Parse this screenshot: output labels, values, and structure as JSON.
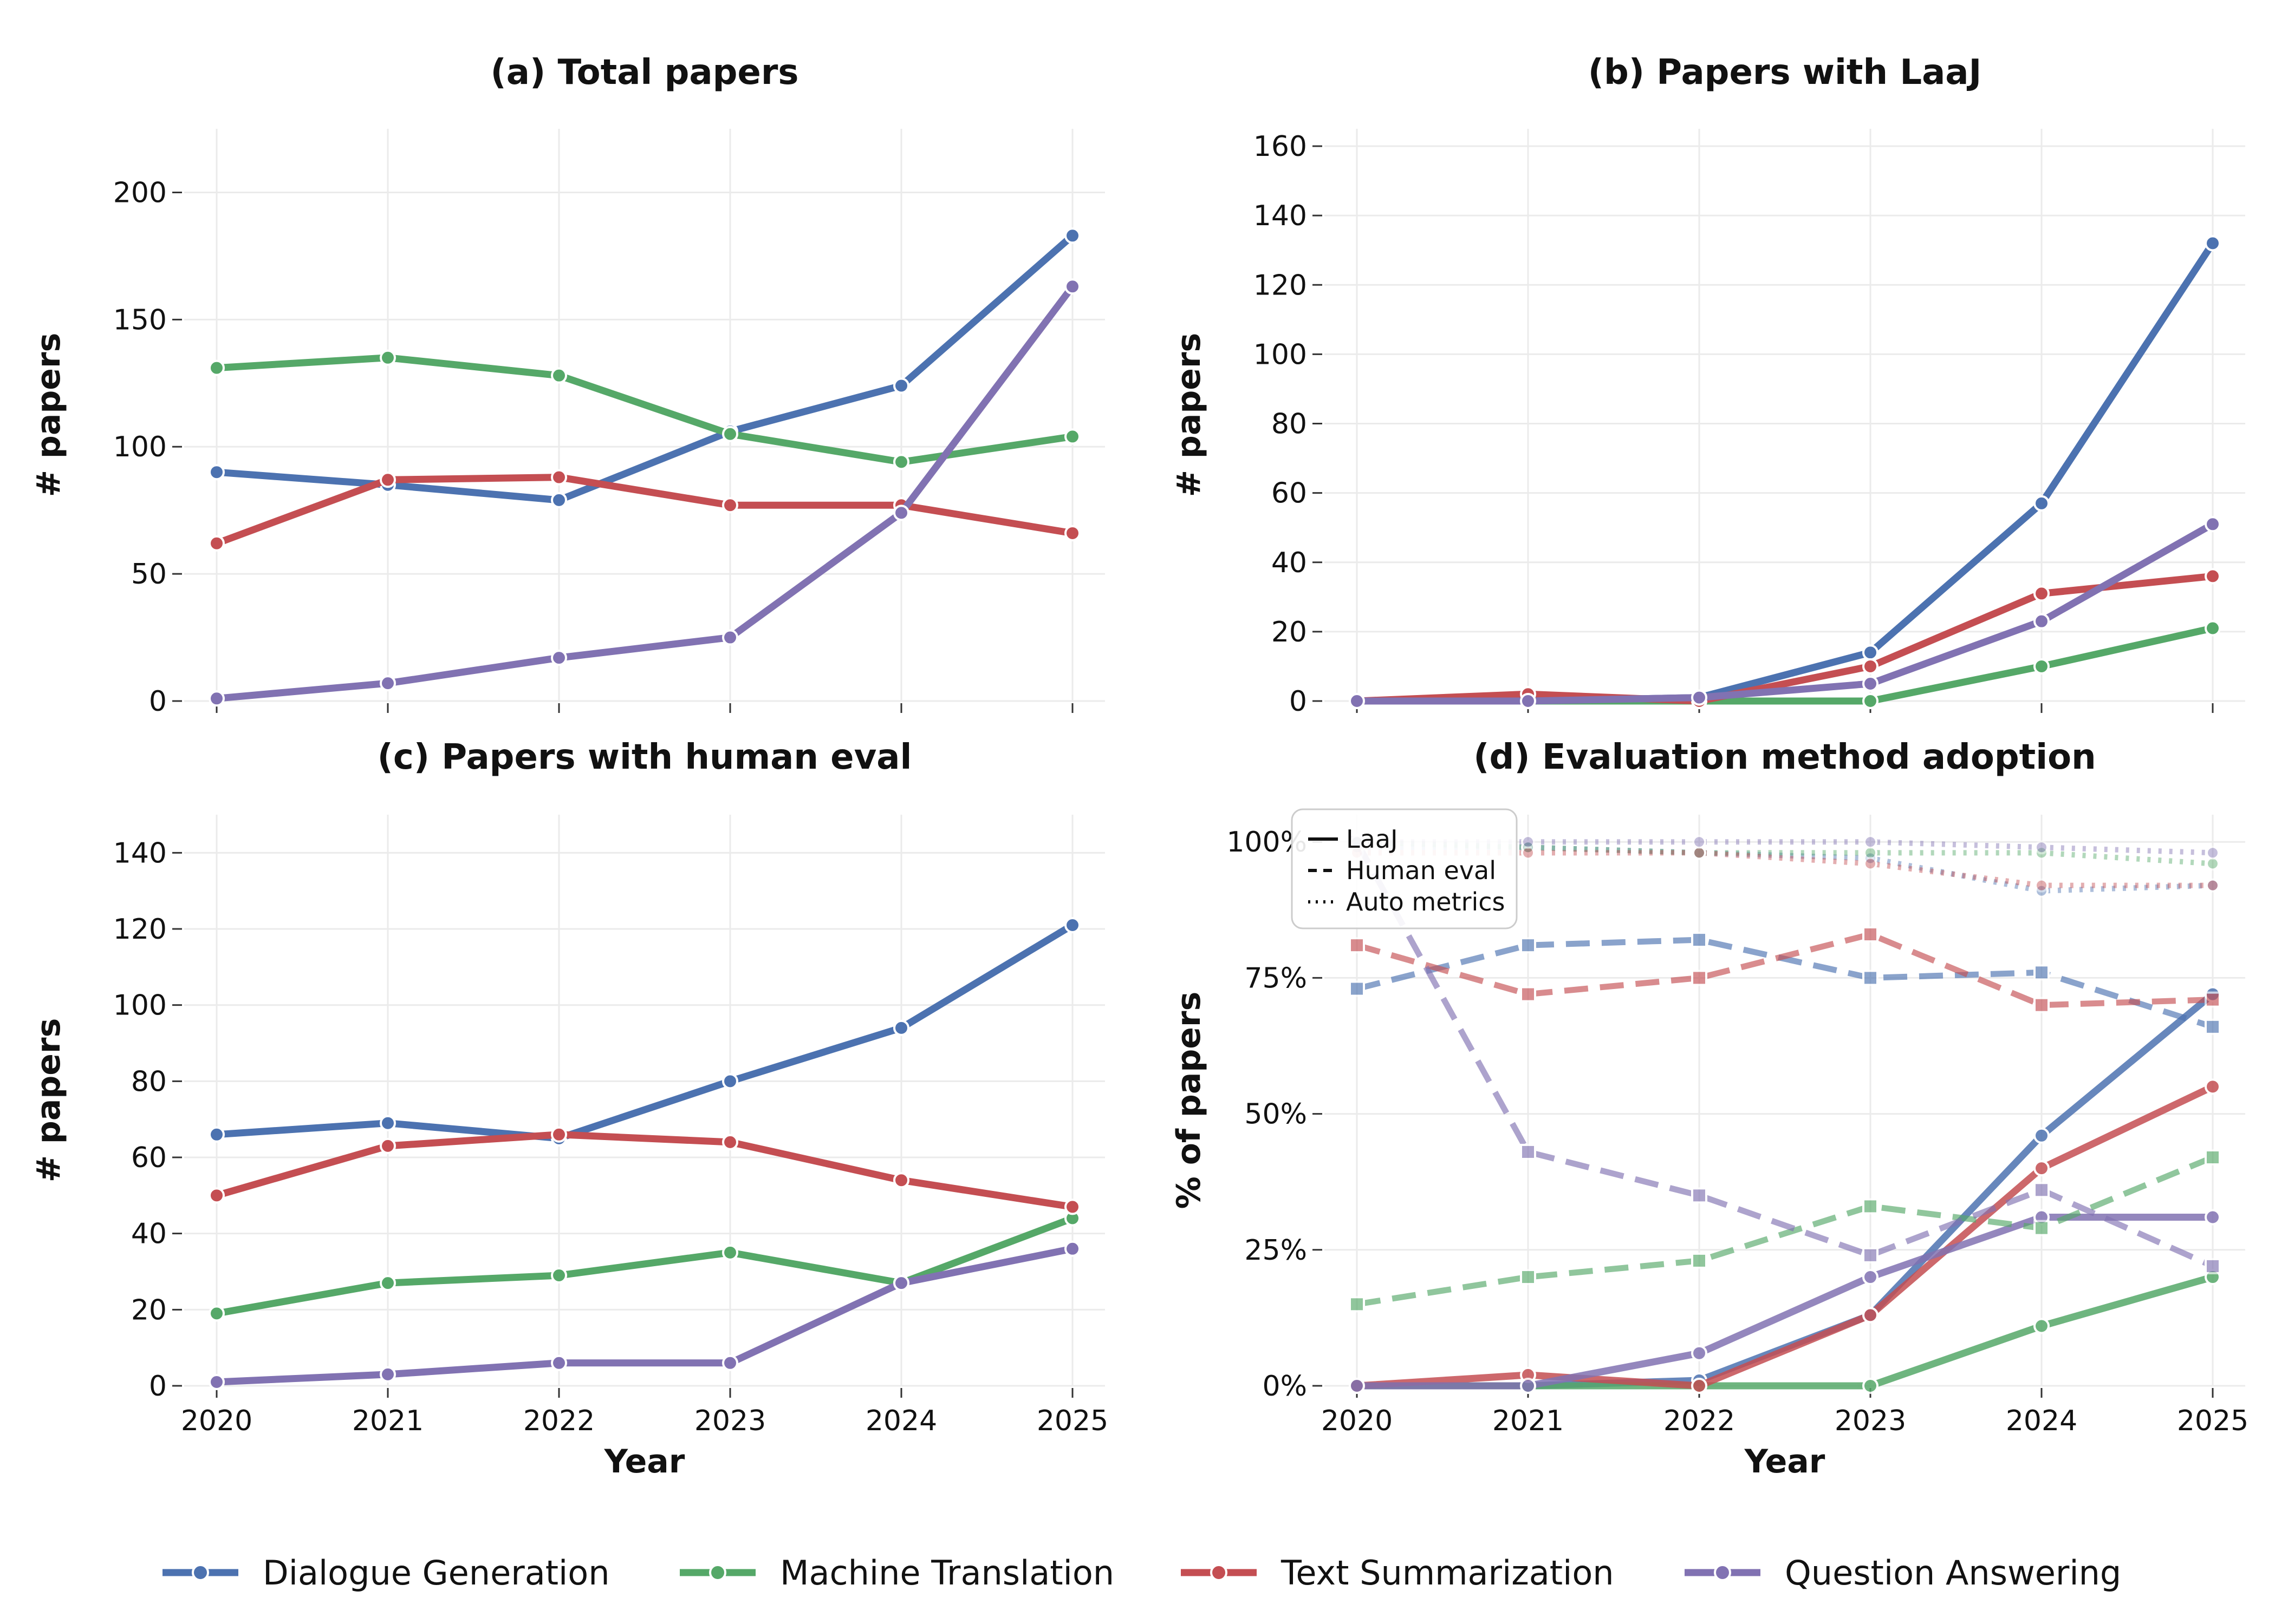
{
  "colors": {
    "dialogue": "#4c72b0",
    "translation": "#55a868",
    "summarization": "#c44e52",
    "qa": "#8172b2"
  },
  "legend": [
    {
      "key": "dialogue",
      "label": "Dialogue Generation"
    },
    {
      "key": "translation",
      "label": "Machine Translation"
    },
    {
      "key": "summarization",
      "label": "Text Summarization"
    },
    {
      "key": "qa",
      "label": "Question Answering"
    }
  ],
  "chart_data": [
    {
      "type": "line",
      "title": "(a) Total papers",
      "xlabel": "",
      "ylabel": "# papers",
      "x": [
        2020,
        2021,
        2022,
        2023,
        2024,
        2025
      ],
      "ylim": [
        0,
        225
      ],
      "yticks": [
        0,
        50,
        100,
        150,
        200
      ],
      "show_x_ticklabels": false,
      "series": [
        {
          "key": "dialogue",
          "name": "Dialogue Generation",
          "values": [
            90,
            85,
            79,
            106,
            124,
            183
          ]
        },
        {
          "key": "translation",
          "name": "Machine Translation",
          "values": [
            131,
            135,
            128,
            105,
            94,
            104
          ]
        },
        {
          "key": "summarization",
          "name": "Text Summarization",
          "values": [
            62,
            87,
            88,
            77,
            77,
            66
          ]
        },
        {
          "key": "qa",
          "name": "Question Answering",
          "values": [
            1,
            7,
            17,
            25,
            74,
            163
          ]
        }
      ]
    },
    {
      "type": "line",
      "title": "(b) Papers with LaaJ",
      "xlabel": "",
      "ylabel": "# papers",
      "x": [
        2020,
        2021,
        2022,
        2023,
        2024,
        2025
      ],
      "ylim": [
        0,
        165
      ],
      "yticks": [
        0,
        20,
        40,
        60,
        80,
        100,
        120,
        140,
        160
      ],
      "show_x_ticklabels": false,
      "series": [
        {
          "key": "dialogue",
          "name": "Dialogue Generation",
          "values": [
            0,
            0,
            1,
            14,
            57,
            132
          ]
        },
        {
          "key": "translation",
          "name": "Machine Translation",
          "values": [
            0,
            0,
            0,
            0,
            10,
            21
          ]
        },
        {
          "key": "summarization",
          "name": "Text Summarization",
          "values": [
            0,
            2,
            0,
            10,
            31,
            36
          ]
        },
        {
          "key": "qa",
          "name": "Question Answering",
          "values": [
            0,
            0,
            1,
            5,
            23,
            51
          ]
        }
      ]
    },
    {
      "type": "line",
      "title": "(c) Papers with human eval",
      "xlabel": "Year",
      "ylabel": "# papers",
      "x": [
        2020,
        2021,
        2022,
        2023,
        2024,
        2025
      ],
      "ylim": [
        0,
        150
      ],
      "yticks": [
        0,
        20,
        40,
        60,
        80,
        100,
        120,
        140
      ],
      "show_x_ticklabels": true,
      "series": [
        {
          "key": "dialogue",
          "name": "Dialogue Generation",
          "values": [
            66,
            69,
            65,
            80,
            94,
            121
          ]
        },
        {
          "key": "translation",
          "name": "Machine Translation",
          "values": [
            19,
            27,
            29,
            35,
            27,
            44
          ]
        },
        {
          "key": "summarization",
          "name": "Text Summarization",
          "values": [
            50,
            63,
            66,
            64,
            54,
            47
          ]
        },
        {
          "key": "qa",
          "name": "Question Answering",
          "values": [
            1,
            3,
            6,
            6,
            27,
            36
          ]
        }
      ]
    },
    {
      "type": "line",
      "title": "(d) Evaluation method adoption",
      "xlabel": "Year",
      "ylabel": "% of papers",
      "x": [
        2020,
        2021,
        2022,
        2023,
        2024,
        2025
      ],
      "ylim": [
        0,
        1.05
      ],
      "yticks": [
        0,
        0.25,
        0.5,
        0.75,
        1.0
      ],
      "ytick_labels": [
        "0%",
        "25%",
        "50%",
        "75%",
        "100%"
      ],
      "show_x_ticklabels": true,
      "style_legend": [
        {
          "style": "solid",
          "label": "LaaJ"
        },
        {
          "style": "dashed",
          "label": "Human eval"
        },
        {
          "style": "dotted",
          "label": "Auto metrics"
        }
      ],
      "series": [
        {
          "key": "dialogue",
          "metric": "LaaJ",
          "values": [
            0,
            0,
            0.01,
            0.13,
            0.46,
            0.72
          ]
        },
        {
          "key": "translation",
          "metric": "LaaJ",
          "values": [
            0,
            0,
            0,
            0,
            0.11,
            0.2
          ]
        },
        {
          "key": "summarization",
          "metric": "LaaJ",
          "values": [
            0,
            0.02,
            0,
            0.13,
            0.4,
            0.55
          ]
        },
        {
          "key": "qa",
          "metric": "LaaJ",
          "values": [
            0,
            0,
            0.06,
            0.2,
            0.31,
            0.31
          ]
        },
        {
          "key": "dialogue",
          "metric": "Human eval",
          "values": [
            0.73,
            0.81,
            0.82,
            0.75,
            0.76,
            0.66
          ]
        },
        {
          "key": "translation",
          "metric": "Human eval",
          "values": [
            0.15,
            0.2,
            0.23,
            0.33,
            0.29,
            0.42
          ]
        },
        {
          "key": "summarization",
          "metric": "Human eval",
          "values": [
            0.81,
            0.72,
            0.75,
            0.83,
            0.7,
            0.71
          ]
        },
        {
          "key": "qa",
          "metric": "Human eval",
          "values": [
            1.0,
            0.43,
            0.35,
            0.24,
            0.36,
            0.22
          ]
        },
        {
          "key": "dialogue",
          "metric": "Auto metrics",
          "values": [
            0.99,
            0.99,
            0.98,
            0.97,
            0.91,
            0.92
          ]
        },
        {
          "key": "translation",
          "metric": "Auto metrics",
          "values": [
            1.0,
            0.99,
            0.98,
            0.98,
            0.98,
            0.96
          ]
        },
        {
          "key": "summarization",
          "metric": "Auto metrics",
          "values": [
            0.98,
            0.98,
            0.98,
            0.96,
            0.92,
            0.92
          ]
        },
        {
          "key": "qa",
          "metric": "Auto metrics",
          "values": [
            1.0,
            1.0,
            1.0,
            1.0,
            0.99,
            0.98
          ]
        }
      ]
    }
  ]
}
